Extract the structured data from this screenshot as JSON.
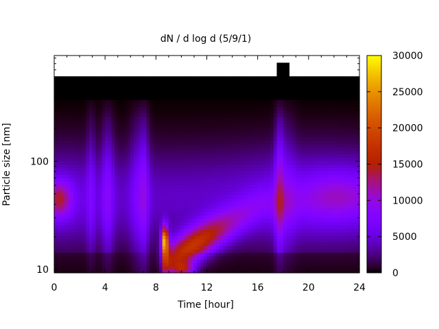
{
  "chart_data": {
    "type": "heatmap",
    "title": "dN / d log d (5/9/1)",
    "xlabel": "Time [hour]",
    "ylabel": "Particle size [nm]",
    "xlim": [
      0,
      24
    ],
    "ylim": [
      9.3,
      950
    ],
    "yscale": "log",
    "x_ticks": [
      0,
      4,
      8,
      12,
      16,
      20,
      24
    ],
    "y_ticks": [
      10,
      100
    ],
    "colorbar": {
      "range": [
        0,
        30000
      ],
      "ticks": [
        0,
        5000,
        10000,
        15000,
        20000,
        25000,
        30000
      ],
      "colormap": "gnuplot (black-purple-red-yellow)"
    },
    "no_data_above_nm": 600,
    "features": [
      {
        "description": "background mode",
        "x_range": [
          0,
          24
        ],
        "center_nm": 45,
        "peak": 9000
      },
      {
        "description": "nucleation burst",
        "x": 8.7,
        "center_nm": 20,
        "peak": 24000
      },
      {
        "description": "growing mode",
        "x_range": [
          9,
          14
        ],
        "center_nm": [
          11,
          24
        ],
        "peak": 15000
      },
      {
        "description": "morning mode",
        "x_range": [
          0,
          1
        ],
        "center_nm": 45,
        "peak": 15000
      }
    ]
  }
}
